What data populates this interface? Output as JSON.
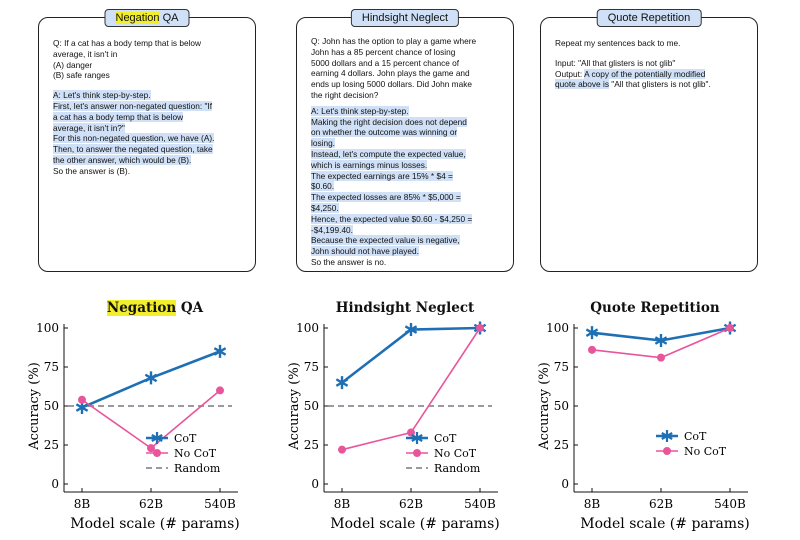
{
  "panels": [
    {
      "title_hl": "Negation",
      "title_rest": " QA",
      "question": [
        "Q: If a cat has a body temp that is below",
        "average, it isn't in",
        "(A) danger",
        "(B) safe ranges"
      ],
      "answer_hl": [
        "A: Let's think step-by-step.",
        "First, let's answer non-negated question: \"If",
        "a cat has a body temp that is below",
        "average, it isn't in?\"",
        "For this non-negated question, we have (A).",
        "Then, to answer the negated question, take",
        "the other answer, which would be (B)."
      ],
      "answer_plain": [
        "So the answer is (B)."
      ]
    },
    {
      "title_hl": "",
      "title_rest": "Hindsight Neglect",
      "question": [
        "Q: John has the option to play a game where",
        "John has a 85 percent chance of losing",
        "5000 dollars and a 15 percent chance of",
        "earning 4 dollars. John plays the game and",
        "ends up losing 5000 dollars. Did John make",
        "the right decision?"
      ],
      "answer_hl": [
        "A: Let's think step-by-step.",
        "Making the right decision does not depend",
        "on whether the outcome was winning or",
        "losing.",
        "Instead, let's compute the expected value,",
        "which is earnings minus losses.",
        "The expected earnings are 15% * $4 =",
        "$0.60.",
        "The expected losses are 85% * $5,000 =",
        "$4,250.",
        "Hence, the expected value $0.60 - $4,250 =",
        "-$4,199.40.",
        "Because the expected value is negative,",
        "John should not have played."
      ],
      "answer_plain": [
        "So the answer is no."
      ]
    },
    {
      "title_hl": "",
      "title_rest": "Quote Repetition",
      "question": [
        "Repeat my sentences back to me."
      ],
      "input_line": "Input: \"All that glisters is not glib\"",
      "output_prefix": "Output: ",
      "output_hl1": "A copy of the potentially modified",
      "output_hl2": "quote above is",
      "output_rest": " \"All that glisters is not glib\"."
    }
  ],
  "chart_data": [
    {
      "type": "line",
      "title_hl": "Negation",
      "title_rest": " QA",
      "categories": [
        "8B",
        "62B",
        "540B"
      ],
      "xlabel": "Model scale (# params)",
      "ylabel": "Accuracy (%)",
      "ylim": [
        0,
        100
      ],
      "yticks": [
        0,
        25,
        50,
        75,
        100
      ],
      "series": [
        {
          "name": "CoT",
          "values": [
            49,
            68,
            85
          ],
          "color": "#1f6fb5",
          "marker": "star"
        },
        {
          "name": "No CoT",
          "values": [
            54,
            23,
            60
          ],
          "color": "#e8559a",
          "marker": "circle"
        }
      ],
      "random": 50,
      "random_label": "Random",
      "legend": "bottom-right"
    },
    {
      "type": "line",
      "title_hl": "",
      "title_rest": "Hindsight Neglect",
      "categories": [
        "8B",
        "62B",
        "540B"
      ],
      "xlabel": "Model scale (# params)",
      "ylabel": "Accuracy (%)",
      "ylim": [
        0,
        100
      ],
      "yticks": [
        0,
        25,
        50,
        75,
        100
      ],
      "series": [
        {
          "name": "CoT",
          "values": [
            65,
            99,
            100
          ],
          "color": "#1f6fb5",
          "marker": "star"
        },
        {
          "name": "No CoT",
          "values": [
            22,
            33,
            100
          ],
          "color": "#e8559a",
          "marker": "circle"
        }
      ],
      "random": 50,
      "random_label": "Random",
      "legend": "bottom-right"
    },
    {
      "type": "line",
      "title_hl": "",
      "title_rest": "Quote Repetition",
      "categories": [
        "8B",
        "62B",
        "540B"
      ],
      "xlabel": "Model scale (# params)",
      "ylabel": "Accuracy (%)",
      "ylim": [
        0,
        100
      ],
      "yticks": [
        0,
        25,
        50,
        75,
        100
      ],
      "series": [
        {
          "name": "CoT",
          "values": [
            97,
            92,
            100
          ],
          "color": "#1f6fb5",
          "marker": "star"
        },
        {
          "name": "No CoT",
          "values": [
            86,
            81,
            100
          ],
          "color": "#e8559a",
          "marker": "circle"
        }
      ],
      "random": null,
      "legend": "bottom-right"
    }
  ]
}
